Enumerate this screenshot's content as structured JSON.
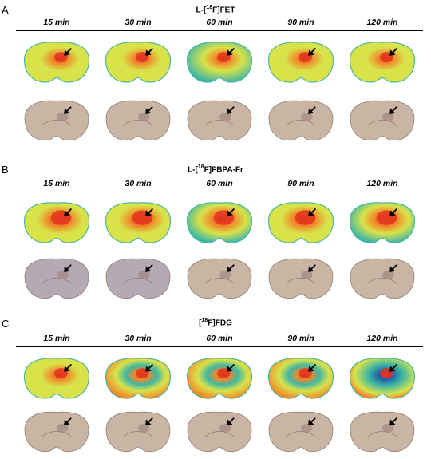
{
  "panels": [
    {
      "label": "A",
      "tracer_prefix": "L-[",
      "tracer_sup": "18",
      "tracer_suffix": "F]FET",
      "times": [
        "15 min",
        "30 min",
        "60 min",
        "90 min",
        "120 min"
      ]
    },
    {
      "label": "B",
      "tracer_prefix": "L-[",
      "tracer_sup": "18",
      "tracer_suffix": "F]FBPA-Fr",
      "times": [
        "15 min",
        "30 min",
        "60 min",
        "90 min",
        "120 min"
      ]
    },
    {
      "label": "C",
      "tracer_prefix": "[",
      "tracer_sup": "18",
      "tracer_suffix": "F]FDG",
      "times": [
        "15 min",
        "30 min",
        "60 min",
        "90 min",
        "120 min"
      ]
    }
  ],
  "colors": {
    "autoradiograph_bg": "#d8e34a",
    "hot_spot": "#e3341f",
    "warm": "#f08a2a",
    "cool": "#3fb6a4",
    "cold": "#1f5aa8",
    "stained_tissue": "#c9b5a4"
  }
}
